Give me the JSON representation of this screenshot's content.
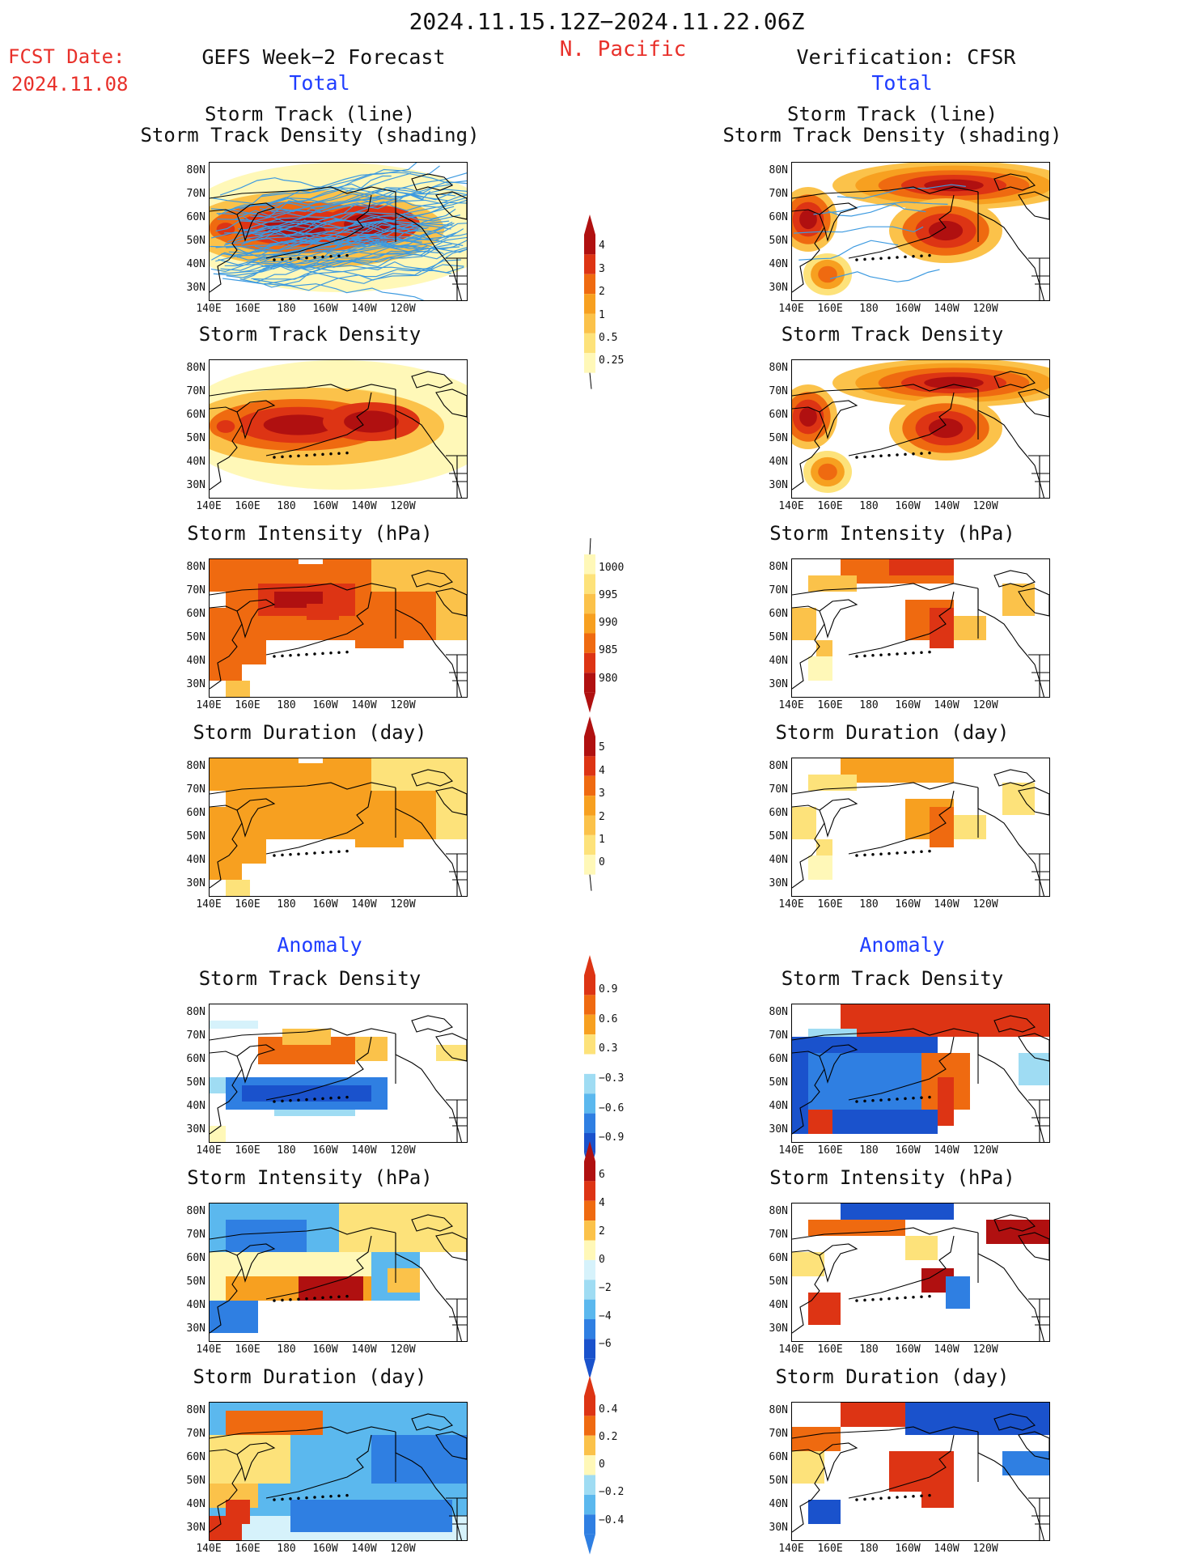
{
  "header": {
    "date_range": "2024.11.15.12Z−2024.11.22.06Z",
    "region": "N. Pacific",
    "fcst_label": "FCST Date:",
    "fcst_date": "2024.11.08",
    "left_title": "GEFS Week−2 Forecast",
    "right_title": "Verification: CFSR",
    "left_section_total": "Total",
    "right_section_total": "Total",
    "left_section_anomaly": "Anomaly",
    "right_section_anomaly": "Anomaly"
  },
  "panel_titles": {
    "track_line": "Storm Track (line)",
    "track_shading": "Storm Track Density (shading)",
    "density": "Storm Track Density",
    "intensity": "Storm Intensity (hPa)",
    "duration": "Storm Duration (day)"
  },
  "axes": {
    "lat_labels": [
      "80N",
      "70N",
      "60N",
      "50N",
      "40N",
      "30N"
    ],
    "lon_labels": [
      "140E",
      "160E",
      "180",
      "160W",
      "140W",
      "120W"
    ]
  },
  "colorbars": {
    "density_total": [
      "4",
      "3",
      "2",
      "1",
      "0.5",
      "0.25"
    ],
    "intensity_total": [
      "1000",
      "995",
      "990",
      "985",
      "980"
    ],
    "duration_total": [
      "5",
      "4",
      "3",
      "2",
      "1",
      "0"
    ],
    "density_anom": [
      "0.9",
      "0.6",
      "0.3",
      "−0.3",
      "−0.6",
      "−0.9"
    ],
    "intensity_anom": [
      "6",
      "4",
      "2",
      "0",
      "−2",
      "−4",
      "−6"
    ],
    "duration_anom": [
      "0.4",
      "0.2",
      "0",
      "−0.2",
      "−0.4"
    ]
  },
  "colors": {
    "warm": [
      "#fff8b8",
      "#fde27a",
      "#fbc24a",
      "#f7a020",
      "#ef6a10",
      "#dd3414",
      "#b01010"
    ],
    "cool": [
      "#d6f2fb",
      "#9fdcf3",
      "#5bb8ee",
      "#2f7fe2",
      "#1a52cc"
    ],
    "track_line": "#3d9ae0",
    "accent_red": "#e8302a",
    "accent_blue": "#1f3dff"
  }
}
